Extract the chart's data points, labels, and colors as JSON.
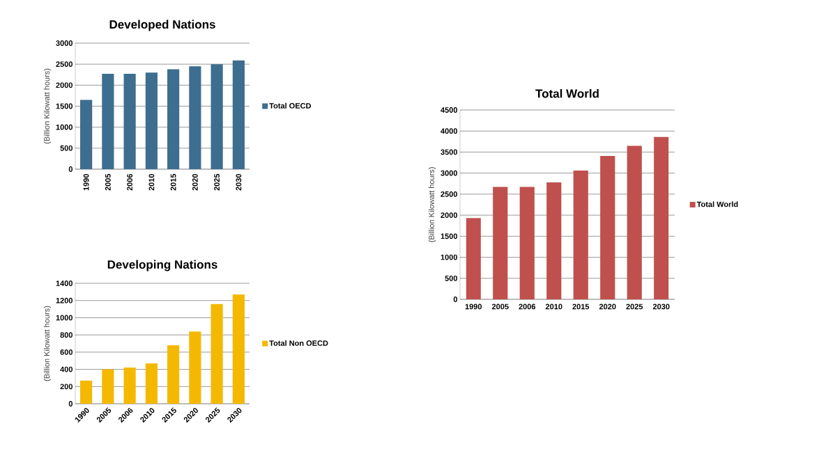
{
  "chart_data": [
    {
      "type": "bar",
      "title": "Developed Nations",
      "ylabel": "(Billion Kilowatt hours)",
      "categories": [
        "1990",
        "2005",
        "2006",
        "2010",
        "2015",
        "2020",
        "2025",
        "2030"
      ],
      "series": [
        {
          "name": "Total OECD",
          "color": "#3d6e8f",
          "values": [
            1650,
            2270,
            2270,
            2300,
            2380,
            2450,
            2500,
            2590
          ]
        }
      ],
      "ylim": [
        0,
        3000
      ],
      "yticks": [
        0,
        500,
        1000,
        1500,
        2000,
        2500,
        3000
      ],
      "grid": "y",
      "legend": "right"
    },
    {
      "type": "bar",
      "title": "Developing Nations",
      "ylabel": "(Billion Kilowatt hours)",
      "categories": [
        "1990",
        "2005",
        "2006",
        "2010",
        "2015",
        "2020",
        "2025",
        "2030"
      ],
      "series": [
        {
          "name": "Total Non OECD",
          "color": "#f5b800",
          "values": [
            270,
            400,
            420,
            470,
            680,
            840,
            1160,
            1270
          ]
        }
      ],
      "ylim": [
        0,
        1400
      ],
      "yticks": [
        0,
        200,
        400,
        600,
        800,
        1000,
        1200,
        1400
      ],
      "grid": "y",
      "legend": "right"
    },
    {
      "type": "bar",
      "title": "Total World",
      "ylabel": "(Billion Kilowatt hours)",
      "categories": [
        "1990",
        "2005",
        "2006",
        "2010",
        "2015",
        "2020",
        "2025",
        "2030"
      ],
      "series": [
        {
          "name": "Total World",
          "color": "#c0504d",
          "values": [
            1930,
            2670,
            2670,
            2780,
            3060,
            3410,
            3650,
            3860
          ]
        }
      ],
      "ylim": [
        0,
        4500
      ],
      "yticks": [
        0,
        500,
        1000,
        1500,
        2000,
        2500,
        3000,
        3500,
        4000,
        4500
      ],
      "grid": "y",
      "legend": "right"
    }
  ]
}
